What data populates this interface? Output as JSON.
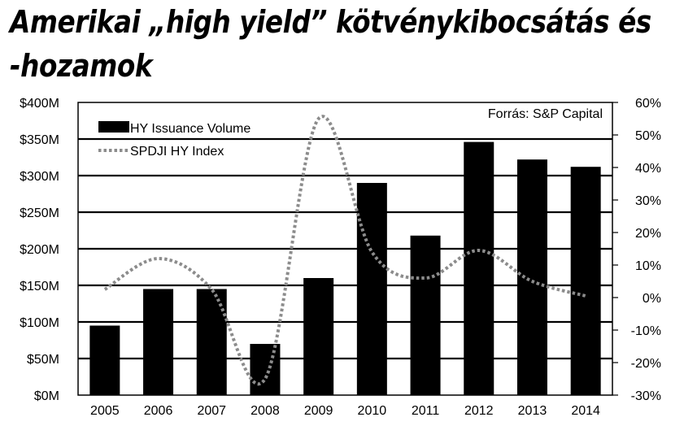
{
  "title_line1": "Amerikai „high yield” kötvénykibocsátás és",
  "title_line2": "-hozamok",
  "chart_data": {
    "type": "bar",
    "source": "Forrás: S&P Capital",
    "categories": [
      "2005",
      "2006",
      "2007",
      "2008",
      "2009",
      "2010",
      "2011",
      "2012",
      "2013",
      "2014"
    ],
    "series": [
      {
        "name": "HY Issuance Volume",
        "axis": "left",
        "kind": "bar",
        "color": "#000000",
        "values": [
          95,
          145,
          145,
          70,
          160,
          290,
          218,
          346,
          322,
          312
        ]
      },
      {
        "name": "SPDJI HY Index",
        "axis": "right",
        "kind": "line",
        "style": "dotted",
        "color": "#8c8c8c",
        "values": [
          2.5,
          12,
          2.5,
          -25,
          55,
          14,
          6,
          14.5,
          5,
          0.5
        ]
      }
    ],
    "left_axis": {
      "ylim": [
        0,
        400
      ],
      "ticks": [
        "$0M",
        "$50M",
        "$100M",
        "$150M",
        "$200M",
        "$250M",
        "$300M",
        "$350M",
        "$400M"
      ]
    },
    "right_axis": {
      "ylim": [
        -30,
        60
      ],
      "ticks": [
        "-30%",
        "-20%",
        "-10%",
        "0%",
        "10%",
        "20%",
        "30%",
        "40%",
        "50%",
        "60%"
      ]
    },
    "grid": true,
    "legend_position": "top-left"
  }
}
